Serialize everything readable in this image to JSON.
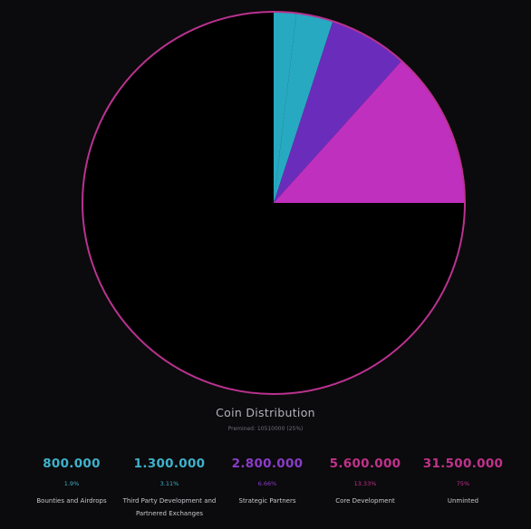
{
  "chart_data": {
    "type": "pie",
    "title": "Coin Distribution",
    "subtitle": "Premined: 10510000 (25%)",
    "slices": [
      {
        "label": "Bounties and Airdrops",
        "value": 1.9,
        "color": "#27a9c2"
      },
      {
        "label": "Third Party Development and Partnered Exchanges",
        "value": 3.11,
        "color": "#27a9c2"
      },
      {
        "label": "Strategic Partners",
        "value": 6.66,
        "color": "#6a2dbb"
      },
      {
        "label": "Core Development",
        "value": 13.33,
        "color": "#c030bf"
      },
      {
        "label": "Unminted",
        "value": 75,
        "color": "#000000"
      }
    ],
    "outline_color": "#b9328f"
  },
  "stats": [
    {
      "amount": "800.000",
      "pct": "1.9%",
      "label": "Bounties and Airdrops",
      "color": "#3eb2cc"
    },
    {
      "amount": "1.300.000",
      "pct": "3.11%",
      "label": "Third Party Development and Partnered Exchanges",
      "color": "#3eb2cc"
    },
    {
      "amount": "2.800.000",
      "pct": "6.66%",
      "label": "Strategic Partners",
      "color": "#8a3cc8"
    },
    {
      "amount": "5.600.000",
      "pct": "13.33%",
      "label": "Core Development",
      "color": "#c0328c"
    },
    {
      "amount": "31.500.000",
      "pct": "75%",
      "label": "Unminted",
      "color": "#c0328c"
    }
  ]
}
